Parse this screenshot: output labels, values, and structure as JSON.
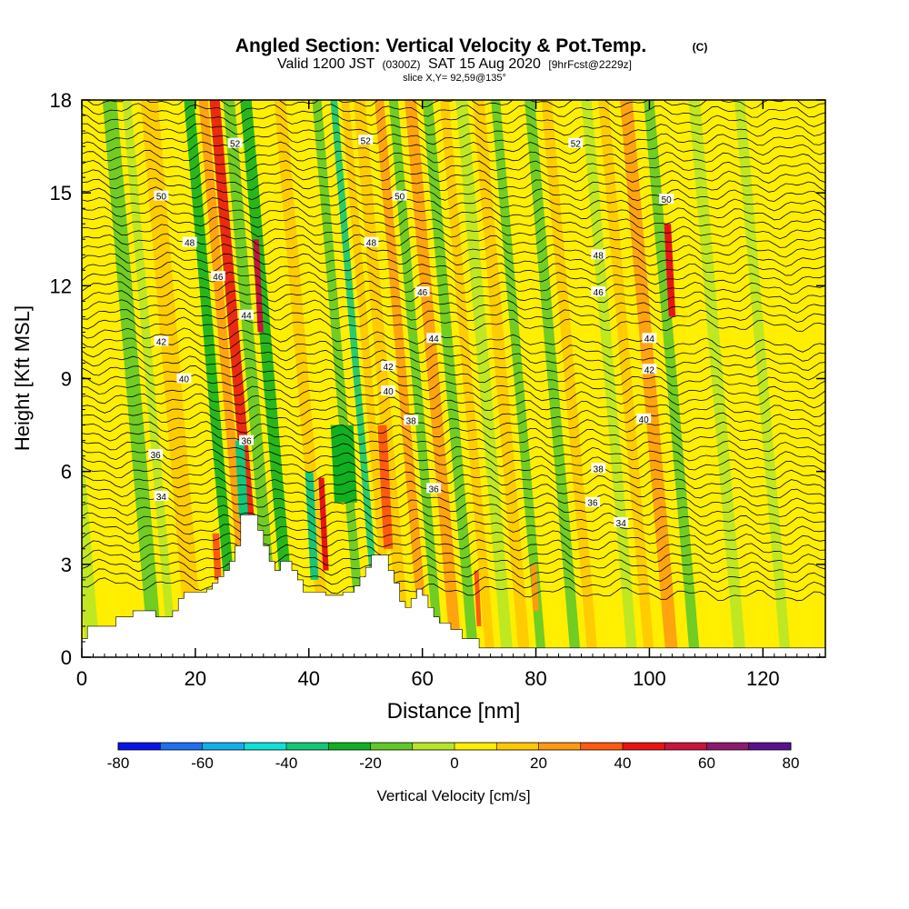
{
  "chart_data": {
    "type": "heatmap",
    "title": "Angled Section: Vertical Velocity & Pot.Temp.",
    "title_mark": "(C)",
    "subtitle_line1": "Valid 1200 JST",
    "subtitle_zulu": "(0300Z)",
    "subtitle_date": "SAT 15 Aug 2020",
    "subtitle_fcst": "[9hrFcst@2229z]",
    "subtitle_line2": "slice X,Y= 92,59@135°",
    "xlabel": "Distance [nm]",
    "ylabel": "Height [Kft MSL]",
    "xlim": [
      0,
      131
    ],
    "ylim": [
      0,
      18
    ],
    "x_ticks": [
      0,
      20,
      40,
      60,
      80,
      100,
      120
    ],
    "x_tick_labels": [
      "0",
      "20",
      "40",
      "60",
      "80",
      "100",
      "120"
    ],
    "y_ticks": [
      0,
      3,
      6,
      9,
      12,
      15,
      18
    ],
    "y_tick_labels": [
      "0",
      "3",
      "6",
      "9",
      "12",
      "15",
      "18"
    ],
    "colorbar": {
      "label": "Vertical Velocity [cm/s]",
      "min": -80,
      "max": 80,
      "step": 10,
      "tick_values": [
        -80,
        -60,
        -40,
        -20,
        0,
        20,
        40,
        60,
        80
      ],
      "tick_labels": [
        "-80",
        "-60",
        "-40",
        "-20",
        "0",
        "20",
        "40",
        "60",
        "80"
      ],
      "colors": [
        "#0a14e6",
        "#1f6ff0",
        "#12aef0",
        "#10e0d8",
        "#12c878",
        "#10b020",
        "#62c828",
        "#b8e626",
        "#ffee00",
        "#ffc800",
        "#ff9a10",
        "#ff5a10",
        "#e81414",
        "#c8143c",
        "#8c1a6e",
        "#5a128c"
      ]
    },
    "velocity_columns": [
      {
        "x": 2,
        "w": 2.5,
        "v": -8
      },
      {
        "x": 6,
        "w": 1.5,
        "v": 8
      },
      {
        "x": 13,
        "w": 2.5,
        "v": -18
      },
      {
        "x": 16,
        "w": 1.5,
        "v": -8
      },
      {
        "x": 20,
        "w": 3.0,
        "v": 18
      },
      {
        "x": 24,
        "w": 2.0,
        "v": 5
      },
      {
        "x": 27,
        "w": 1.8,
        "v": -28
      },
      {
        "x": 29.5,
        "w": 1.6,
        "v": 28
      },
      {
        "x": 31.5,
        "w": 1.8,
        "v": 45
      },
      {
        "x": 34,
        "w": 2.0,
        "v": -15
      },
      {
        "x": 37,
        "w": 2.0,
        "v": -22
      },
      {
        "x": 40,
        "w": 1.6,
        "v": 8
      },
      {
        "x": 43,
        "w": 2.0,
        "v": 15
      },
      {
        "x": 46,
        "w": 2.0,
        "v": 8
      },
      {
        "x": 49.5,
        "w": 1.6,
        "v": -12
      },
      {
        "x": 52.5,
        "w": 1.2,
        "v": -38
      },
      {
        "x": 54.5,
        "w": 1.4,
        "v": 18
      },
      {
        "x": 57,
        "w": 2.0,
        "v": 12
      },
      {
        "x": 60.5,
        "w": 1.6,
        "v": 22
      },
      {
        "x": 63,
        "w": 1.6,
        "v": -18
      },
      {
        "x": 66,
        "w": 2.0,
        "v": 22
      },
      {
        "x": 69,
        "w": 1.8,
        "v": -12
      },
      {
        "x": 72,
        "w": 1.6,
        "v": 12
      },
      {
        "x": 75,
        "w": 2.0,
        "v": -8
      },
      {
        "x": 78,
        "w": 2.0,
        "v": 18
      },
      {
        "x": 81,
        "w": 1.6,
        "v": -12
      },
      {
        "x": 84,
        "w": 1.6,
        "v": 8
      },
      {
        "x": 87,
        "w": 1.8,
        "v": -14
      },
      {
        "x": 90,
        "w": 1.8,
        "v": 12
      },
      {
        "x": 94,
        "w": 2.0,
        "v": 5
      },
      {
        "x": 97,
        "w": 1.8,
        "v": -8
      },
      {
        "x": 100,
        "w": 1.8,
        "v": 12
      },
      {
        "x": 104,
        "w": 2.2,
        "v": 28
      },
      {
        "x": 108,
        "w": 1.8,
        "v": -14
      },
      {
        "x": 112,
        "w": 2.0,
        "v": 8
      },
      {
        "x": 116,
        "w": 2.0,
        "v": -8
      },
      {
        "x": 120,
        "w": 2.0,
        "v": 5
      },
      {
        "x": 124,
        "w": 1.8,
        "v": -8
      },
      {
        "x": 128,
        "w": 2.0,
        "v": 5
      }
    ],
    "velocity_cells": [
      {
        "x": 31.5,
        "y0": 10.5,
        "y1": 13.5,
        "w": 1.0,
        "v": 55
      },
      {
        "x": 43,
        "y0": 2.8,
        "y1": 5.8,
        "w": 1.0,
        "v": 45
      },
      {
        "x": 54.0,
        "y0": 4.0,
        "y1": 6.5,
        "w": 0.8,
        "v": 62
      },
      {
        "x": 54.0,
        "y0": 3.5,
        "y1": 7.5,
        "w": 1.6,
        "v": 35
      },
      {
        "x": 41,
        "y0": 2.5,
        "y1": 6.0,
        "w": 1.4,
        "v": -35
      },
      {
        "x": 28.5,
        "y0": 4.5,
        "y1": 7.0,
        "w": 1.6,
        "v": -38
      },
      {
        "x": 46.5,
        "y0": 5.0,
        "y1": 7.5,
        "w": 4.0,
        "v": -22
      },
      {
        "x": 104,
        "y0": 11.0,
        "y1": 14.0,
        "w": 1.2,
        "v": 40
      },
      {
        "x": 70,
        "y0": 1.0,
        "y1": 2.8,
        "w": 0.8,
        "v": 35
      },
      {
        "x": 80,
        "y0": 1.5,
        "y1": 3.0,
        "w": 1.0,
        "v": 28
      },
      {
        "x": 24,
        "y0": 2.5,
        "y1": 4.0,
        "w": 1.2,
        "v": 30
      }
    ],
    "terrain": [
      [
        0,
        0.6
      ],
      [
        1,
        1.0
      ],
      [
        6,
        1.3
      ],
      [
        9,
        1.5
      ],
      [
        13,
        1.3
      ],
      [
        16,
        1.5
      ],
      [
        17,
        1.9
      ],
      [
        18,
        2.1
      ],
      [
        22,
        2.2
      ],
      [
        23,
        2.4
      ],
      [
        24,
        2.6
      ],
      [
        25,
        2.8
      ],
      [
        26,
        3.1
      ],
      [
        27,
        3.6
      ],
      [
        28,
        4.6
      ],
      [
        31,
        4.1
      ],
      [
        32,
        3.6
      ],
      [
        33,
        3.1
      ],
      [
        34,
        2.8
      ],
      [
        35,
        3.1
      ],
      [
        37,
        2.8
      ],
      [
        38,
        2.5
      ],
      [
        39,
        2.1
      ],
      [
        40,
        2.1
      ],
      [
        41,
        2.1
      ],
      [
        43,
        2.0
      ],
      [
        46,
        2.1
      ],
      [
        48,
        2.3
      ],
      [
        49,
        2.6
      ],
      [
        50,
        2.9
      ],
      [
        51,
        3.3
      ],
      [
        54,
        2.8
      ],
      [
        55,
        2.4
      ],
      [
        56,
        1.8
      ],
      [
        57,
        1.6
      ],
      [
        58,
        1.9
      ],
      [
        59,
        2.2
      ],
      [
        60,
        2.0
      ],
      [
        61,
        1.6
      ],
      [
        62,
        1.3
      ],
      [
        63,
        1.1
      ],
      [
        65,
        0.9
      ],
      [
        67,
        0.6
      ],
      [
        70,
        0.3
      ],
      [
        72,
        0.3
      ],
      [
        131,
        0.3
      ]
    ],
    "theta_contours": [
      {
        "level": 34,
        "base": 5.2,
        "label": "34",
        "label_x": 14
      },
      {
        "level": 34,
        "base": 4.35,
        "label": "34",
        "label_x": 95
      },
      {
        "level": 36,
        "base": 6.55,
        "label": "36",
        "label_x": 13
      },
      {
        "level": 36,
        "base": 5.0,
        "label": "36",
        "label_x": 90
      },
      {
        "level": 36,
        "base": 5.45,
        "label": "36",
        "label_x": 62
      },
      {
        "level": 36,
        "base": 7.0,
        "label": "36",
        "label_x": 29
      },
      {
        "level": 38,
        "base": 7.65,
        "label": "38",
        "label_x": 58
      },
      {
        "level": 38,
        "base": 6.1,
        "label": "38",
        "label_x": 91
      },
      {
        "level": 40,
        "base": 9.0,
        "label": "40",
        "label_x": 18
      },
      {
        "level": 40,
        "base": 8.6,
        "label": "40",
        "label_x": 54
      },
      {
        "level": 40,
        "base": 7.7,
        "label": "40",
        "label_x": 99
      },
      {
        "level": 42,
        "base": 10.2,
        "label": "42",
        "label_x": 14
      },
      {
        "level": 42,
        "base": 9.4,
        "label": "42",
        "label_x": 54
      },
      {
        "level": 42,
        "base": 9.3,
        "label": "42",
        "label_x": 100
      },
      {
        "level": 44,
        "base": 11.05,
        "label": "44",
        "label_x": 29
      },
      {
        "level": 44,
        "base": 10.3,
        "label": "44",
        "label_x": 62
      },
      {
        "level": 44,
        "base": 10.3,
        "label": "44",
        "label_x": 100
      },
      {
        "level": 46,
        "base": 12.3,
        "label": "46",
        "label_x": 24
      },
      {
        "level": 46,
        "base": 11.8,
        "label": "46",
        "label_x": 60
      },
      {
        "level": 46,
        "base": 11.8,
        "label": "46",
        "label_x": 91
      },
      {
        "level": 48,
        "base": 13.4,
        "label": "48",
        "label_x": 19
      },
      {
        "level": 48,
        "base": 13.4,
        "label": "48",
        "label_x": 51
      },
      {
        "level": 48,
        "base": 13.0,
        "label": "48",
        "label_x": 91
      },
      {
        "level": 50,
        "base": 14.9,
        "label": "50",
        "label_x": 14
      },
      {
        "level": 50,
        "base": 14.9,
        "label": "50",
        "label_x": 56
      },
      {
        "level": 50,
        "base": 14.8,
        "label": "50",
        "label_x": 103
      },
      {
        "level": 52,
        "base": 16.6,
        "label": "52",
        "label_x": 27
      },
      {
        "level": 52,
        "base": 16.7,
        "label": "52",
        "label_x": 50
      },
      {
        "level": 52,
        "base": 16.6,
        "label": "52",
        "label_x": 87
      }
    ]
  }
}
